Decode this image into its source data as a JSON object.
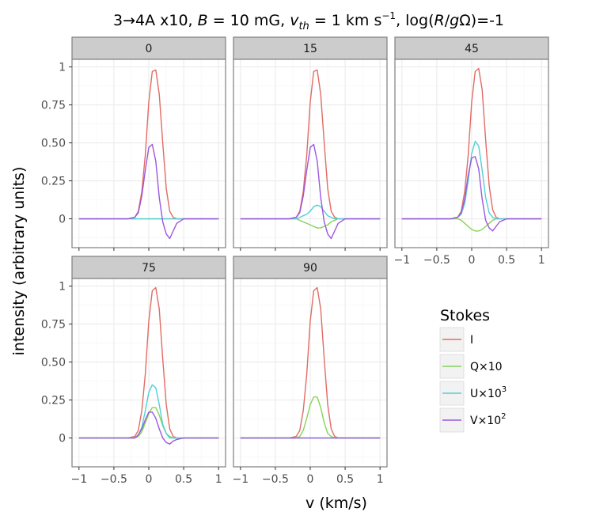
{
  "chart_data": {
    "type": "line",
    "title": "3→4A x10, B = 10 mG, v_th = 1 km s⁻¹, log(R/gΩ)=-1",
    "title_parts": {
      "prefix": "3→4A x10, ",
      "b_sym": "B",
      "b_val": " = 10 mG, ",
      "v_sym": "v",
      "v_sub": "th",
      "v_val": " = 1 km s",
      "v_exp": "−1",
      "log_open": ", log(",
      "log_r": "R",
      "log_slash": "/",
      "log_g": "g",
      "log_close": "Ω)=-1"
    },
    "xlabel": "v (km/s)",
    "ylabel": "intensity (arbitrary units)",
    "xlim": [
      -1.1,
      1.1
    ],
    "ylim": [
      -0.19,
      1.05
    ],
    "x_ticks": [
      -1,
      -0.5,
      0,
      0.5,
      1
    ],
    "x_tick_labels": [
      "−1",
      "−0.5",
      "0",
      "0.5",
      "1"
    ],
    "y_ticks": [
      0,
      0.25,
      0.5,
      0.75,
      1
    ],
    "y_tick_labels": [
      "0",
      "0.25",
      "0.50",
      "0.75",
      "1"
    ],
    "legend": {
      "title": "Stokes",
      "entries": [
        {
          "key": "I",
          "label": "I",
          "color": "#e06c65"
        },
        {
          "key": "Q",
          "label": "Q×10",
          "color": "#86d359"
        },
        {
          "key": "U",
          "label": "U×10",
          "label_exp": "3",
          "color": "#52cfd4"
        },
        {
          "key": "V",
          "label": "V×10",
          "label_exp": "2",
          "color": "#9b57df"
        }
      ]
    },
    "x": [
      -1.0,
      -0.9,
      -0.8,
      -0.7,
      -0.6,
      -0.5,
      -0.4,
      -0.3,
      -0.2,
      -0.15,
      -0.1,
      -0.05,
      0.0,
      0.05,
      0.1,
      0.15,
      0.2,
      0.25,
      0.3,
      0.35,
      0.4,
      0.5,
      0.6,
      0.7,
      0.8,
      0.9,
      1.0
    ],
    "panels": [
      {
        "label": "0",
        "series": {
          "I": [
            0,
            0,
            0,
            0,
            0,
            0,
            0,
            0,
            0.01,
            0.05,
            0.18,
            0.42,
            0.77,
            0.97,
            0.98,
            0.82,
            0.5,
            0.2,
            0.05,
            0.01,
            0,
            0,
            0,
            0,
            0,
            0,
            0
          ],
          "Q": [
            0,
            0,
            0,
            0,
            0,
            0,
            0,
            0,
            0,
            0,
            0,
            0,
            0,
            0,
            0,
            0,
            0,
            0,
            0,
            0,
            0,
            0,
            0,
            0,
            0,
            0,
            0
          ],
          "U": [
            0,
            0,
            0,
            0,
            0,
            0,
            0,
            0,
            0,
            0,
            0,
            0,
            0,
            0,
            0,
            0,
            0,
            0,
            0,
            0,
            0,
            0,
            0,
            0,
            0,
            0,
            0
          ],
          "V": [
            0,
            0,
            0,
            0,
            0,
            0,
            0,
            0,
            0.01,
            0.04,
            0.15,
            0.32,
            0.47,
            0.49,
            0.38,
            0.14,
            -0.02,
            -0.1,
            -0.13,
            -0.08,
            -0.03,
            0,
            0,
            0,
            0,
            0,
            0
          ]
        }
      },
      {
        "label": "15",
        "series": {
          "I": [
            0,
            0,
            0,
            0,
            0,
            0,
            0,
            0,
            0.01,
            0.05,
            0.18,
            0.42,
            0.77,
            0.97,
            0.98,
            0.82,
            0.5,
            0.2,
            0.05,
            0.01,
            0,
            0,
            0,
            0,
            0,
            0,
            0
          ],
          "Q": [
            0,
            0,
            0,
            0,
            0,
            0,
            0,
            0,
            0,
            -0.01,
            -0.02,
            -0.03,
            -0.04,
            -0.05,
            -0.06,
            -0.06,
            -0.05,
            -0.04,
            -0.02,
            -0.01,
            0,
            0,
            0,
            0,
            0,
            0,
            0
          ],
          "U": [
            0,
            0,
            0,
            0,
            0,
            0,
            0,
            0,
            0,
            0.01,
            0.02,
            0.03,
            0.05,
            0.08,
            0.09,
            0.08,
            0.05,
            0.02,
            0.01,
            0,
            0,
            0,
            0,
            0,
            0,
            0,
            0
          ],
          "V": [
            0,
            0,
            0,
            0,
            0,
            0,
            0,
            0,
            0.01,
            0.04,
            0.15,
            0.32,
            0.47,
            0.49,
            0.38,
            0.14,
            -0.02,
            -0.1,
            -0.13,
            -0.08,
            -0.03,
            0,
            0,
            0,
            0,
            0,
            0
          ]
        }
      },
      {
        "label": "45",
        "series": {
          "I": [
            0,
            0,
            0,
            0,
            0,
            0,
            0,
            0,
            0.01,
            0.05,
            0.18,
            0.42,
            0.77,
            0.97,
            0.99,
            0.85,
            0.52,
            0.22,
            0.06,
            0.01,
            0,
            0,
            0,
            0,
            0,
            0,
            0
          ],
          "Q": [
            0,
            0,
            0,
            0,
            0,
            0,
            0,
            0,
            0,
            -0.01,
            -0.03,
            -0.05,
            -0.07,
            -0.08,
            -0.08,
            -0.07,
            -0.05,
            -0.03,
            -0.01,
            0,
            0,
            0,
            0,
            0,
            0,
            0,
            0
          ],
          "U": [
            0,
            0,
            0,
            0,
            0,
            0,
            0,
            0,
            0.01,
            0.03,
            0.1,
            0.25,
            0.43,
            0.51,
            0.48,
            0.32,
            0.14,
            0.04,
            0.01,
            0,
            0,
            0,
            0,
            0,
            0,
            0,
            0
          ],
          "V": [
            0,
            0,
            0,
            0,
            0,
            0,
            0,
            0,
            0.01,
            0.04,
            0.13,
            0.29,
            0.4,
            0.41,
            0.33,
            0.13,
            -0.01,
            -0.06,
            -0.08,
            -0.05,
            -0.02,
            0,
            0,
            0,
            0,
            0,
            0
          ]
        }
      },
      {
        "label": "75",
        "series": {
          "I": [
            0,
            0,
            0,
            0,
            0,
            0,
            0,
            0,
            0.01,
            0.05,
            0.18,
            0.42,
            0.77,
            0.97,
            0.99,
            0.85,
            0.52,
            0.22,
            0.06,
            0.01,
            0,
            0,
            0,
            0,
            0,
            0,
            0
          ],
          "Q": [
            0,
            0,
            0,
            0,
            0,
            0,
            0,
            0,
            0,
            0.01,
            0.04,
            0.1,
            0.16,
            0.2,
            0.2,
            0.15,
            0.08,
            0.03,
            0.01,
            0,
            0,
            0,
            0,
            0,
            0,
            0,
            0
          ],
          "U": [
            0,
            0,
            0,
            0,
            0,
            0,
            0,
            0,
            0,
            0.02,
            0.07,
            0.18,
            0.3,
            0.35,
            0.33,
            0.22,
            0.09,
            0.03,
            0,
            0,
            0,
            0,
            0,
            0,
            0,
            0,
            0
          ],
          "V": [
            0,
            0,
            0,
            0,
            0,
            0,
            0,
            0,
            0,
            0.02,
            0.06,
            0.12,
            0.17,
            0.17,
            0.13,
            0.06,
            0,
            -0.03,
            -0.04,
            -0.02,
            -0.01,
            0,
            0,
            0,
            0,
            0,
            0
          ]
        }
      },
      {
        "label": "90",
        "series": {
          "I": [
            0,
            0,
            0,
            0,
            0,
            0,
            0,
            0,
            0.01,
            0.05,
            0.18,
            0.42,
            0.77,
            0.97,
            0.99,
            0.85,
            0.52,
            0.22,
            0.06,
            0.01,
            0,
            0,
            0,
            0,
            0,
            0,
            0
          ],
          "Q": [
            0,
            0,
            0,
            0,
            0,
            0,
            0,
            0,
            0,
            0.01,
            0.05,
            0.13,
            0.22,
            0.27,
            0.27,
            0.2,
            0.1,
            0.03,
            0.01,
            0,
            0,
            0,
            0,
            0,
            0,
            0,
            0
          ],
          "U": [
            0,
            0,
            0,
            0,
            0,
            0,
            0,
            0,
            0,
            0,
            0,
            0,
            0,
            0,
            0,
            0,
            0,
            0,
            0,
            0,
            0,
            0,
            0,
            0,
            0,
            0,
            0
          ],
          "V": [
            0,
            0,
            0,
            0,
            0,
            0,
            0,
            0,
            0,
            0,
            0,
            0,
            0,
            0,
            0,
            0,
            0,
            0,
            0,
            0,
            0,
            0,
            0,
            0,
            0,
            0,
            0
          ]
        }
      }
    ]
  }
}
